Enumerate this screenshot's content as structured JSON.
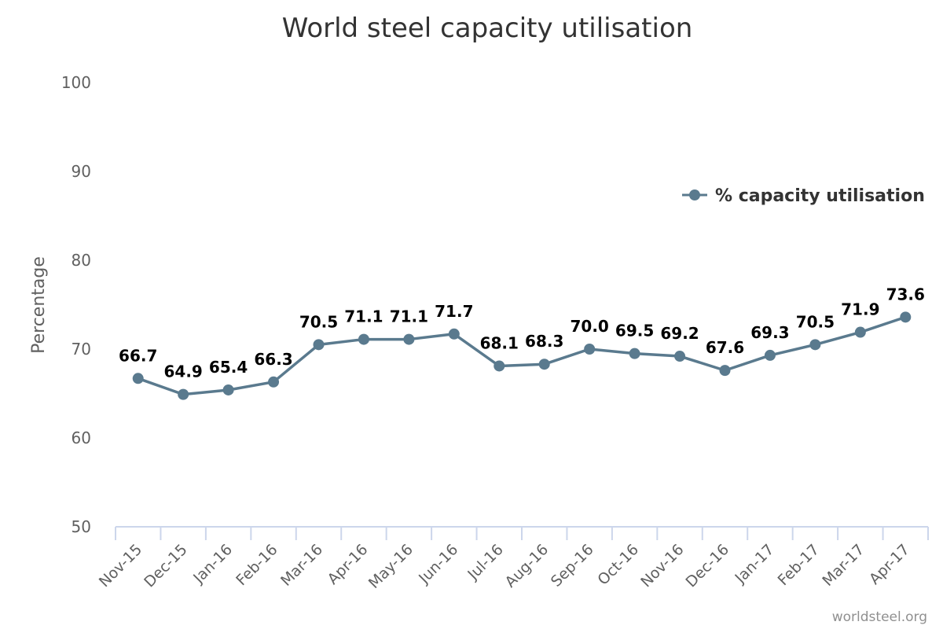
{
  "chart_data": {
    "type": "line",
    "title": "World steel capacity utilisation",
    "ylabel": "Percentage",
    "xlabel": "",
    "ylim": [
      50,
      100
    ],
    "yticks": [
      50,
      60,
      70,
      80,
      90,
      100
    ],
    "grid": false,
    "legend_position": "top-right",
    "categories": [
      "Nov-15",
      "Dec-15",
      "Jan-16",
      "Feb-16",
      "Mar-16",
      "Apr-16",
      "May-16",
      "Jun-16",
      "Jul-16",
      "Aug-16",
      "Sep-16",
      "Oct-16",
      "Nov-16",
      "Dec-16",
      "Jan-17",
      "Feb-17",
      "Mar-17",
      "Apr-17"
    ],
    "series": [
      {
        "name": "% capacity utilisation",
        "color": "#5a7a8e",
        "values": [
          66.7,
          64.9,
          65.4,
          66.3,
          70.5,
          71.1,
          71.1,
          71.7,
          68.1,
          68.3,
          70.0,
          69.5,
          69.2,
          67.6,
          69.3,
          70.5,
          71.9,
          73.6
        ],
        "labels": [
          "66.7",
          "64.9",
          "65.4",
          "66.3",
          "70.5",
          "71.1",
          "71.1",
          "71.7",
          "68.1",
          "68.3",
          "70.0",
          "69.5",
          "69.2",
          "67.6",
          "69.3",
          "70.5",
          "71.9",
          "73.6"
        ]
      }
    ]
  },
  "credit": "worldsteel.org"
}
